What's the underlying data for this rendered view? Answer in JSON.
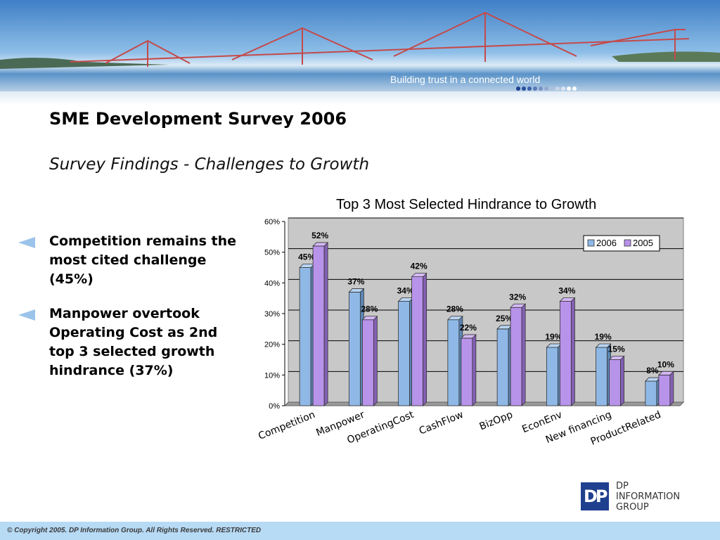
{
  "banner": {
    "tagline": "Building trust in a connected world"
  },
  "slide": {
    "title": "SME Development Survey 2006",
    "subtitle": "Survey Findings  -  Challenges to Growth"
  },
  "bullets": [
    {
      "text": "Competition remains the most cited challenge (45%)"
    },
    {
      "text": "Manpower overtook Operating Cost as 2nd top 3 selected growth hindrance (37%)"
    }
  ],
  "colors": {
    "series_2006": "#8fb8e6",
    "series_2005": "#b893ea",
    "plot_bg": "#c8c8c8",
    "footer_bg": "#b7daf5"
  },
  "chart_data": {
    "type": "bar",
    "title": "Top 3 Most Selected Hindrance to Growth",
    "categories": [
      "Competition",
      "Manpower",
      "OperatingCost",
      "CashFlow",
      "BizOpp",
      "EconEnv",
      "New financing",
      "ProductRelated"
    ],
    "series": [
      {
        "name": "2006",
        "values": [
          45,
          37,
          34,
          28,
          25,
          19,
          19,
          8
        ]
      },
      {
        "name": "2005",
        "values": [
          52,
          28,
          42,
          22,
          32,
          34,
          15,
          10
        ]
      }
    ],
    "ylim": [
      0,
      60
    ],
    "yticks": [
      "0%",
      "10%",
      "20%",
      "30%",
      "40%",
      "50%",
      "60%"
    ],
    "value_suffix": "%",
    "legend_position": "top-right",
    "grid": true
  },
  "logo": {
    "initials": "DP",
    "lines": [
      "DP",
      "INFORMATION",
      "GROUP"
    ]
  },
  "footer": {
    "text": "© Copyright 2005. DP Information Group. All Rights Reserved. RESTRICTED"
  }
}
